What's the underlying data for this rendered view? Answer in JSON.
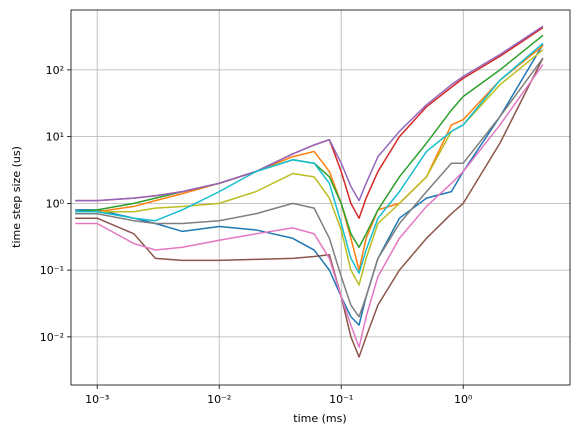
{
  "chart_data": {
    "type": "line",
    "xlabel": "time (ms)",
    "ylabel": "time step size (us)",
    "xscale": "log",
    "yscale": "log",
    "grid": true,
    "xlim": [
      0.00061,
      7.5
    ],
    "ylim": [
      0.0019,
      790
    ],
    "xticks": [
      {
        "value": 0.001,
        "label": "10⁻³"
      },
      {
        "value": 0.01,
        "label": "10⁻²"
      },
      {
        "value": 0.1,
        "label": "10⁻¹"
      },
      {
        "value": 1,
        "label": "10⁰"
      }
    ],
    "yticks": [
      {
        "value": 0.01,
        "label": "10⁻²"
      },
      {
        "value": 0.1,
        "label": "10⁻¹"
      },
      {
        "value": 1,
        "label": "10⁰"
      },
      {
        "value": 10,
        "label": "10¹"
      },
      {
        "value": 100,
        "label": "10²"
      }
    ],
    "x": [
      0.00066,
      0.001,
      0.002,
      0.003,
      0.005,
      0.01,
      0.02,
      0.04,
      0.06,
      0.08,
      0.1,
      0.12,
      0.14,
      0.16,
      0.2,
      0.3,
      0.5,
      0.8,
      1,
      2,
      4.5
    ],
    "series": [
      {
        "color": "#1f77b4",
        "values": [
          0.8,
          0.8,
          0.6,
          0.5,
          0.38,
          0.45,
          0.4,
          0.3,
          0.2,
          0.1,
          0.04,
          0.02,
          0.015,
          0.04,
          0.15,
          0.6,
          1.2,
          1.5,
          3,
          20,
          240
        ]
      },
      {
        "color": "#ff7f0e",
        "values": [
          0.75,
          0.75,
          0.9,
          1.1,
          1.4,
          2,
          3,
          5,
          6,
          3,
          1,
          0.3,
          0.1,
          0.3,
          0.8,
          1,
          2.5,
          15,
          18,
          70,
          230
        ]
      },
      {
        "color": "#2ca02c",
        "values": [
          0.75,
          0.8,
          1,
          1.2,
          1.5,
          2,
          3,
          4.5,
          4,
          2.5,
          1,
          0.35,
          0.22,
          0.35,
          0.8,
          2.5,
          8,
          25,
          40,
          100,
          330
        ]
      },
      {
        "color": "#d62728",
        "values": [
          1.1,
          1.1,
          1.2,
          1.3,
          1.5,
          2,
          3,
          5.5,
          7.5,
          9,
          3,
          1,
          0.6,
          1.2,
          3,
          10,
          28,
          55,
          75,
          160,
          430
        ]
      },
      {
        "color": "#9467bd",
        "values": [
          1.1,
          1.1,
          1.2,
          1.3,
          1.5,
          2,
          3,
          5.5,
          7.5,
          9,
          4,
          1.8,
          1.1,
          2,
          5,
          12,
          30,
          60,
          80,
          170,
          450
        ]
      },
      {
        "color": "#8c564b",
        "values": [
          0.6,
          0.6,
          0.35,
          0.15,
          0.14,
          0.14,
          0.145,
          0.15,
          0.16,
          0.17,
          0.04,
          0.01,
          0.005,
          0.01,
          0.03,
          0.1,
          0.3,
          0.7,
          1,
          8,
          150
        ]
      },
      {
        "color": "#e377c2",
        "values": [
          0.5,
          0.5,
          0.25,
          0.2,
          0.22,
          0.28,
          0.35,
          0.43,
          0.35,
          0.15,
          0.04,
          0.015,
          0.007,
          0.02,
          0.08,
          0.3,
          0.9,
          2,
          3,
          15,
          120
        ]
      },
      {
        "color": "#7f7f7f",
        "values": [
          0.7,
          0.7,
          0.55,
          0.5,
          0.5,
          0.55,
          0.7,
          1,
          0.85,
          0.3,
          0.08,
          0.03,
          0.02,
          0.04,
          0.15,
          0.5,
          1.5,
          4,
          4,
          20,
          150
        ]
      },
      {
        "color": "#bcbd22",
        "values": [
          0.75,
          0.75,
          0.75,
          0.85,
          0.9,
          1,
          1.5,
          2.8,
          2.5,
          1.2,
          0.4,
          0.1,
          0.06,
          0.15,
          0.5,
          1,
          2.5,
          12,
          15,
          60,
          200
        ]
      },
      {
        "color": "#17becf",
        "values": [
          0.75,
          0.75,
          0.6,
          0.55,
          0.8,
          1.5,
          3,
          4.5,
          4,
          2,
          0.5,
          0.15,
          0.09,
          0.2,
          0.6,
          1.5,
          6,
          12,
          15,
          70,
          250
        ]
      }
    ]
  }
}
